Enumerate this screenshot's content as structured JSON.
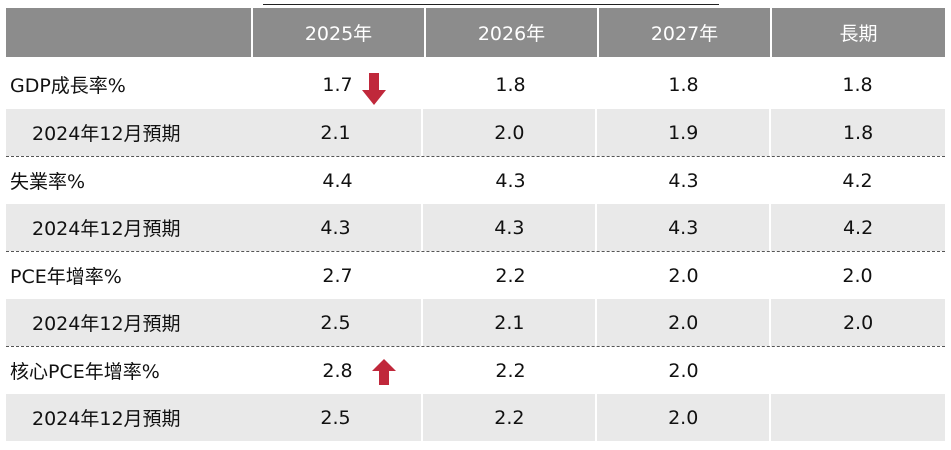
{
  "columns": [
    "",
    "2025年",
    "2026年",
    "2027年",
    "長期"
  ],
  "colors": {
    "header_bg": "#8c8c8c",
    "sub_row_bg": "#e9e9e9",
    "arrow": "#c0283b"
  },
  "rows": [
    {
      "label": "GDP成長率%",
      "values": [
        "1.7",
        "1.8",
        "1.8",
        "1.8"
      ],
      "indicator": "arrow-down-icon"
    },
    {
      "label": "2024年12月預期",
      "values": [
        "2.1",
        "2.0",
        "1.9",
        "1.8"
      ]
    },
    {
      "label": "失業率%",
      "values": [
        "4.4",
        "4.3",
        "4.3",
        "4.2"
      ]
    },
    {
      "label": "2024年12月預期",
      "values": [
        "4.3",
        "4.3",
        "4.3",
        "4.2"
      ]
    },
    {
      "label": "PCE年增率%",
      "values": [
        "2.7",
        "2.2",
        "2.0",
        "2.0"
      ]
    },
    {
      "label": "2024年12月預期",
      "values": [
        "2.5",
        "2.1",
        "2.0",
        "2.0"
      ]
    },
    {
      "label": "核心PCE年增率%",
      "values": [
        "2.8",
        "2.2",
        "2.0",
        ""
      ],
      "indicator": "arrow-up-icon"
    },
    {
      "label": "2024年12月預期",
      "values": [
        "2.5",
        "2.2",
        "2.0",
        ""
      ]
    }
  ]
}
